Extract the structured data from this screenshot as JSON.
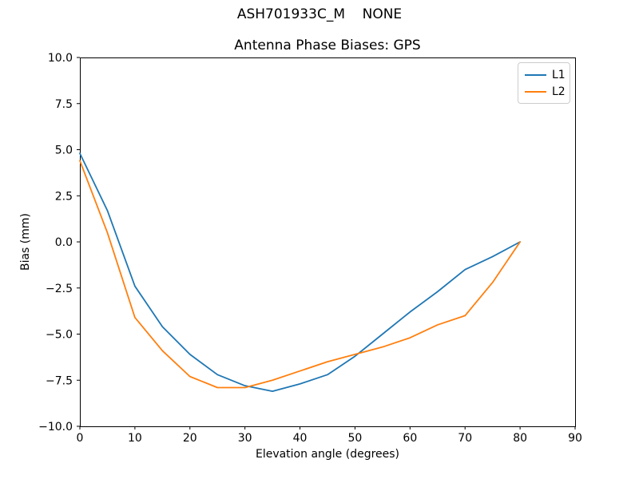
{
  "figure": {
    "suptitle": "ASH701933C_M    NONE"
  },
  "chart_data": {
    "type": "line",
    "title": "Antenna Phase Biases: GPS",
    "xlabel": "Elevation angle (degrees)",
    "ylabel": "Bias (mm)",
    "xlim": [
      0,
      90
    ],
    "ylim": [
      -10,
      10
    ],
    "grid": false,
    "legend_position": "upper right",
    "xticks": [
      0,
      10,
      20,
      30,
      40,
      50,
      60,
      70,
      80,
      90
    ],
    "xtick_labels": [
      "0",
      "10",
      "20",
      "30",
      "40",
      "50",
      "60",
      "70",
      "80",
      "90"
    ],
    "yticks": [
      10,
      7.5,
      5,
      2.5,
      0,
      -2.5,
      -5,
      -7.5,
      -10
    ],
    "ytick_labels": [
      "10.0",
      "7.5",
      "5.0",
      "2.5",
      "0.0",
      "−2.5",
      "−5.0",
      "−7.5",
      "−10.0"
    ],
    "x": [
      0,
      5,
      10,
      15,
      20,
      25,
      30,
      35,
      40,
      45,
      50,
      55,
      60,
      65,
      70,
      75,
      80
    ],
    "series": [
      {
        "name": "L1",
        "color": "#1f77b4",
        "values": [
          4.8,
          1.7,
          -2.4,
          -4.6,
          -6.1,
          -7.2,
          -7.8,
          -8.1,
          -7.7,
          -7.2,
          -6.2,
          -5.0,
          -3.8,
          -2.7,
          -1.5,
          -0.8,
          0.0
        ]
      },
      {
        "name": "L2",
        "color": "#ff7f0e",
        "values": [
          4.4,
          0.5,
          -4.1,
          -5.9,
          -7.3,
          -7.9,
          -7.9,
          -7.5,
          -7.0,
          -6.5,
          -6.1,
          -5.7,
          -5.2,
          -4.5,
          -4.0,
          -2.2,
          0.0
        ]
      }
    ]
  }
}
